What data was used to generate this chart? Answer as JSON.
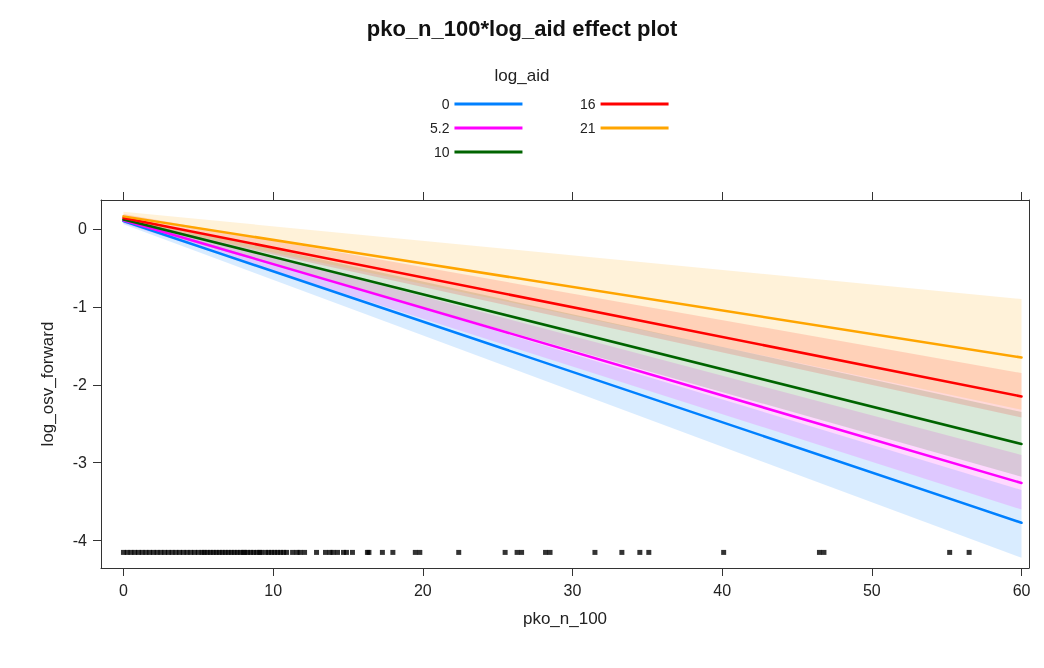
{
  "chart_data": {
    "type": "line",
    "title": "pko_n_100*log_aid effect plot",
    "xlabel": "pko_n_100",
    "ylabel": "log_osv_forward",
    "legend_title": "log_aid",
    "legend": "top",
    "xlim": [
      -1.5,
      60.5
    ],
    "xticks": [
      0,
      10,
      20,
      30,
      40,
      50,
      60
    ],
    "ylim": [
      -4.35,
      0.37
    ],
    "yticks": [
      -4,
      -3,
      -2,
      -1,
      0
    ],
    "grid": false,
    "marker": "none",
    "line_style": "solid",
    "series": [
      {
        "name": "0",
        "color": "#0080ff",
        "x": [
          0,
          60
        ],
        "values": [
          0.1,
          -3.77
        ],
        "lower": [
          0.06,
          -4.22
        ],
        "upper": [
          0.14,
          -3.35
        ]
      },
      {
        "name": "5.2",
        "color": "#ff00ff",
        "x": [
          0,
          60
        ],
        "values": [
          0.11,
          -3.26
        ],
        "lower": [
          0.07,
          -3.6
        ],
        "upper": [
          0.15,
          -2.9
        ]
      },
      {
        "name": "10",
        "color": "#006400",
        "x": [
          0,
          60
        ],
        "values": [
          0.12,
          -2.76
        ],
        "lower": [
          0.08,
          -3.18
        ],
        "upper": [
          0.16,
          -2.35
        ]
      },
      {
        "name": "16",
        "color": "#ff0000",
        "x": [
          0,
          60
        ],
        "values": [
          0.14,
          -2.15
        ],
        "lower": [
          0.09,
          -2.42
        ],
        "upper": [
          0.19,
          -1.85
        ]
      },
      {
        "name": "21",
        "color": "#ffa500",
        "x": [
          0,
          60
        ],
        "values": [
          0.16,
          -1.65
        ],
        "lower": [
          0.1,
          -2.32
        ],
        "upper": [
          0.22,
          -0.9
        ]
      },
      {
        "type": "scatter",
        "marker": "square",
        "color": "#000000",
        "x": [
          0,
          0.25,
          0.5,
          0.75,
          1,
          1.25,
          1.5,
          1.75,
          2,
          2.25,
          2.5,
          2.75,
          3,
          3.25,
          3.5,
          3.75,
          4,
          4.25,
          4.5,
          4.75,
          5,
          5.25,
          5.4,
          5.6,
          5.8,
          6,
          6.2,
          6.4,
          6.6,
          6.8,
          7,
          7.2,
          7.4,
          7.6,
          7.8,
          8,
          8.1,
          8.3,
          8.5,
          8.7,
          8.9,
          9.1,
          9.2,
          9.5,
          9.7,
          9.9,
          10.1,
          10.3,
          10.5,
          10.7,
          10.9,
          11.3,
          11.6,
          11.8,
          12.1,
          12.9,
          13.5,
          13.8,
          14,
          14.3,
          14.7,
          14.9,
          15.3,
          16.3,
          16.4,
          17.3,
          18,
          19.5,
          19.8,
          22.4,
          25.5,
          26.3,
          26.6,
          28.2,
          28.5,
          31.5,
          33.3,
          34.5,
          35.1,
          40.1,
          46.5,
          46.8,
          55.2,
          56.5
        ],
        "values": [
          -4.15,
          -4.15,
          -4.15,
          -4.15,
          -4.15,
          -4.15,
          -4.15,
          -4.15,
          -4.15,
          -4.15,
          -4.15,
          -4.15,
          -4.15,
          -4.15,
          -4.15,
          -4.15,
          -4.15,
          -4.15,
          -4.15,
          -4.15,
          -4.15,
          -4.15,
          -4.15,
          -4.15,
          -4.15,
          -4.15,
          -4.15,
          -4.15,
          -4.15,
          -4.15,
          -4.15,
          -4.15,
          -4.15,
          -4.15,
          -4.15,
          -4.15,
          -4.15,
          -4.15,
          -4.15,
          -4.15,
          -4.15,
          -4.15,
          -4.15,
          -4.15,
          -4.15,
          -4.15,
          -4.15,
          -4.15,
          -4.15,
          -4.15,
          -4.15,
          -4.15,
          -4.15,
          -4.15,
          -4.15,
          -4.15,
          -4.15,
          -4.15,
          -4.15,
          -4.15,
          -4.15,
          -4.15,
          -4.15,
          -4.15,
          -4.15,
          -4.15,
          -4.15,
          -4.15,
          -4.15,
          -4.15,
          -4.15,
          -4.15,
          -4.15,
          -4.15,
          -4.15,
          -4.15,
          -4.15,
          -4.15,
          -4.15,
          -4.15,
          -4.15,
          -4.15,
          -4.15,
          -4.15
        ]
      }
    ]
  }
}
